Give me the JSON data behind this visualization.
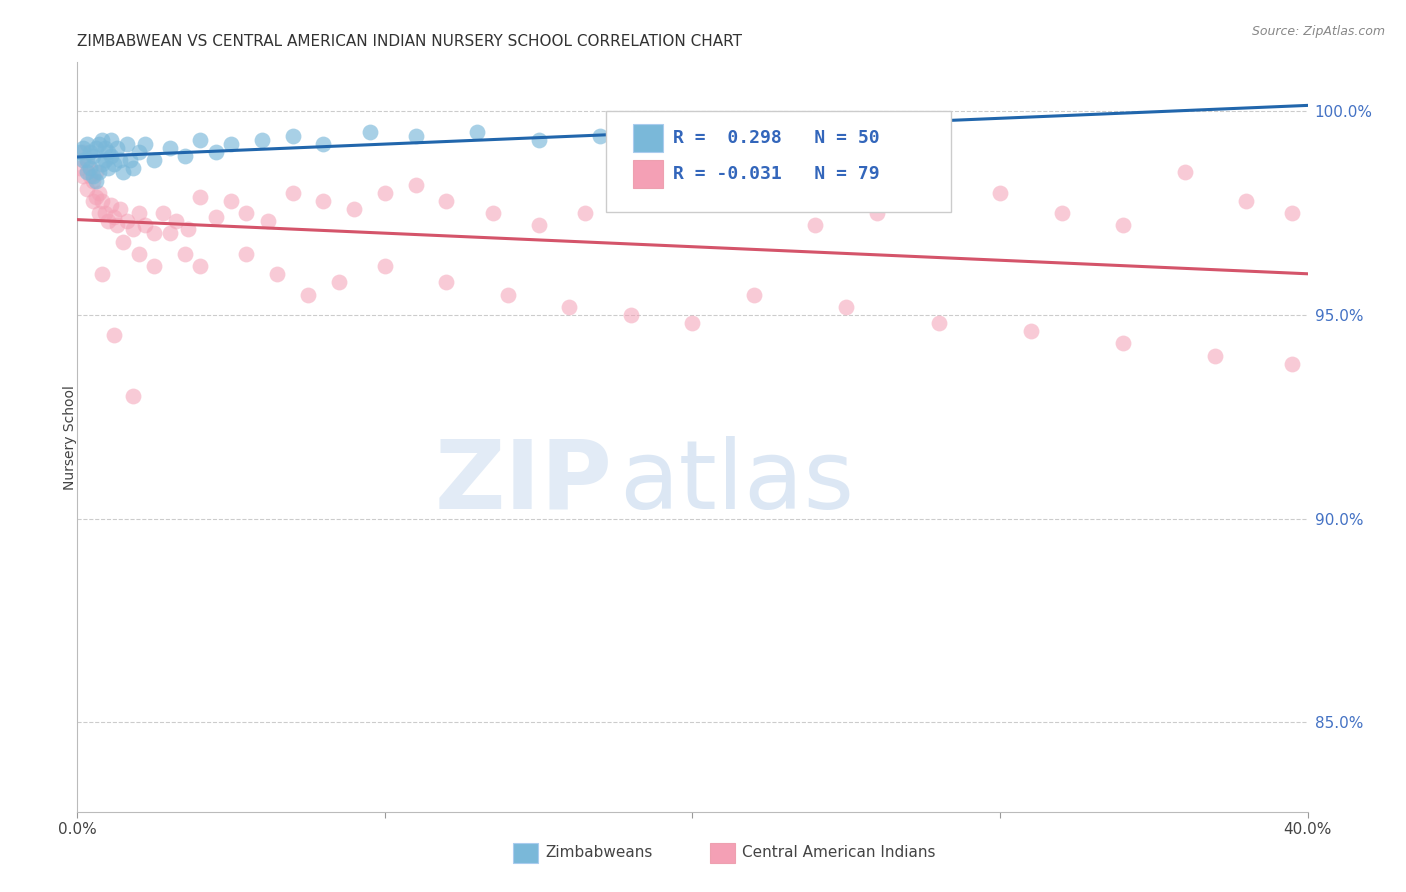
{
  "title": "ZIMBABWEAN VS CENTRAL AMERICAN INDIAN NURSERY SCHOOL CORRELATION CHART",
  "source": "Source: ZipAtlas.com",
  "ylabel": "Nursery School",
  "ytick_labels": [
    "100.0%",
    "95.0%",
    "90.0%",
    "85.0%"
  ],
  "ytick_values": [
    1.0,
    0.95,
    0.9,
    0.85
  ],
  "xlim": [
    0.0,
    0.4
  ],
  "ylim": [
    0.828,
    1.012
  ],
  "legend_blue_r": "0.298",
  "legend_blue_n": "50",
  "legend_pink_r": "-0.031",
  "legend_pink_n": "79",
  "blue_color": "#7ab8d9",
  "pink_color": "#f4a0b5",
  "blue_line_color": "#2166ac",
  "pink_line_color": "#d4546a",
  "blue_scatter_x": [
    0.001,
    0.002,
    0.002,
    0.003,
    0.003,
    0.003,
    0.004,
    0.004,
    0.005,
    0.005,
    0.006,
    0.006,
    0.007,
    0.007,
    0.008,
    0.008,
    0.009,
    0.009,
    0.01,
    0.01,
    0.011,
    0.011,
    0.012,
    0.013,
    0.014,
    0.015,
    0.016,
    0.017,
    0.018,
    0.02,
    0.022,
    0.025,
    0.03,
    0.035,
    0.04,
    0.045,
    0.05,
    0.06,
    0.07,
    0.08,
    0.095,
    0.11,
    0.13,
    0.15,
    0.17,
    0.19,
    0.21,
    0.23,
    0.25,
    0.27
  ],
  "blue_scatter_y": [
    0.99,
    0.988,
    0.991,
    0.985,
    0.988,
    0.992,
    0.986,
    0.99,
    0.984,
    0.989,
    0.983,
    0.991,
    0.985,
    0.992,
    0.987,
    0.993,
    0.988,
    0.991,
    0.986,
    0.99,
    0.989,
    0.993,
    0.987,
    0.991,
    0.988,
    0.985,
    0.992,
    0.988,
    0.986,
    0.99,
    0.992,
    0.988,
    0.991,
    0.989,
    0.993,
    0.99,
    0.992,
    0.993,
    0.994,
    0.992,
    0.995,
    0.994,
    0.995,
    0.993,
    0.994,
    0.996,
    0.995,
    0.994,
    0.996,
    0.995
  ],
  "pink_scatter_x": [
    0.001,
    0.002,
    0.002,
    0.003,
    0.003,
    0.004,
    0.005,
    0.005,
    0.006,
    0.006,
    0.007,
    0.007,
    0.008,
    0.009,
    0.01,
    0.011,
    0.012,
    0.013,
    0.014,
    0.016,
    0.018,
    0.02,
    0.022,
    0.025,
    0.028,
    0.032,
    0.036,
    0.04,
    0.045,
    0.05,
    0.055,
    0.062,
    0.07,
    0.08,
    0.09,
    0.1,
    0.11,
    0.12,
    0.135,
    0.15,
    0.165,
    0.18,
    0.2,
    0.22,
    0.24,
    0.26,
    0.28,
    0.3,
    0.32,
    0.34,
    0.36,
    0.38,
    0.395,
    0.015,
    0.02,
    0.025,
    0.03,
    0.035,
    0.04,
    0.055,
    0.065,
    0.075,
    0.085,
    0.1,
    0.12,
    0.14,
    0.16,
    0.18,
    0.2,
    0.22,
    0.25,
    0.28,
    0.31,
    0.34,
    0.37,
    0.395,
    0.008,
    0.012,
    0.018
  ],
  "pink_scatter_y": [
    0.986,
    0.99,
    0.984,
    0.987,
    0.981,
    0.984,
    0.978,
    0.983,
    0.979,
    0.985,
    0.98,
    0.975,
    0.978,
    0.975,
    0.973,
    0.977,
    0.974,
    0.972,
    0.976,
    0.973,
    0.971,
    0.975,
    0.972,
    0.97,
    0.975,
    0.973,
    0.971,
    0.979,
    0.974,
    0.978,
    0.975,
    0.973,
    0.98,
    0.978,
    0.976,
    0.98,
    0.982,
    0.978,
    0.975,
    0.972,
    0.975,
    0.978,
    0.982,
    0.978,
    0.972,
    0.975,
    0.978,
    0.98,
    0.975,
    0.972,
    0.985,
    0.978,
    0.975,
    0.968,
    0.965,
    0.962,
    0.97,
    0.965,
    0.962,
    0.965,
    0.96,
    0.955,
    0.958,
    0.962,
    0.958,
    0.955,
    0.952,
    0.95,
    0.948,
    0.955,
    0.952,
    0.948,
    0.946,
    0.943,
    0.94,
    0.938,
    0.96,
    0.945,
    0.93
  ]
}
